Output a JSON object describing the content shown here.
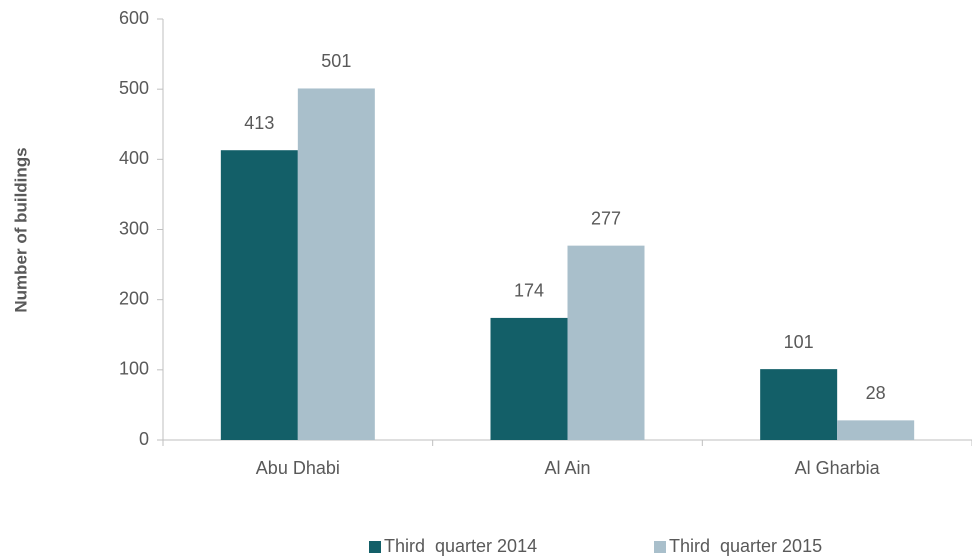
{
  "chart_data": {
    "type": "bar",
    "y_label": "Number of buildings",
    "categories": [
      "Abu Dhabi",
      "Al Ain",
      "Al Gharbia"
    ],
    "series": [
      {
        "name": "Third  quarter 2014",
        "color": "#135f68",
        "values": [
          413,
          174,
          101
        ]
      },
      {
        "name": "Third  quarter 2015",
        "color": "#a9bfcb",
        "values": [
          501,
          277,
          28
        ]
      }
    ],
    "ylim": [
      0,
      600
    ],
    "yticks": [
      0,
      100,
      200,
      300,
      400,
      500,
      600
    ],
    "grid": false,
    "legend": "bottom"
  }
}
